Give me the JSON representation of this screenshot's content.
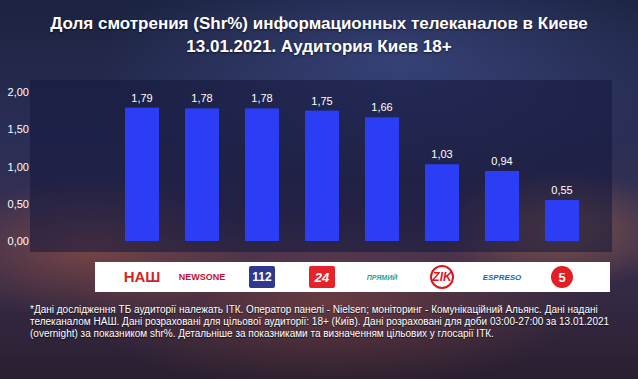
{
  "chart_data": {
    "type": "bar",
    "title": "Доля смотрения (Shr%) информационных телеканалов в Киеве",
    "subtitle": "13.01.2021. Аудитория Киев 18+",
    "categories": [
      "НАШ",
      "NEWSONE",
      "112",
      "24",
      "ПРЯМИЙ",
      "ZIK",
      "ESPRESO",
      "5"
    ],
    "values": [
      1.79,
      1.78,
      1.78,
      1.75,
      1.66,
      1.03,
      0.94,
      0.55
    ],
    "value_labels": [
      "1,79",
      "1,78",
      "1,78",
      "1,75",
      "1,66",
      "1,03",
      "0,94",
      "0,55"
    ],
    "color": "#2b3ef5",
    "ylim": [
      0,
      2
    ],
    "yticks": [
      {
        "value": 0,
        "label": "0,00"
      },
      {
        "value": 0.5,
        "label": "0,50"
      },
      {
        "value": 1,
        "label": "1,00"
      },
      {
        "value": 1.5,
        "label": "1,50"
      },
      {
        "value": 2,
        "label": "2,00"
      }
    ],
    "grid": false,
    "data_labels": true,
    "annotations": [
      "*Дані дослідження ТБ аудиторії належать ІТК. Оператор панелі - Nielsen; моніторинг - Комунікаційний Альянс. Дані надані телеканалом НАШ. Дані розраховані для цільової аудиторії: 18+ (Київ). Дані розраховані для доби 03:00-27:00 за 13.01.2021 (overnight) за показником shr%. Детальніше за показниками та визначенням цільових у глосарії ІТК."
    ]
  }
}
